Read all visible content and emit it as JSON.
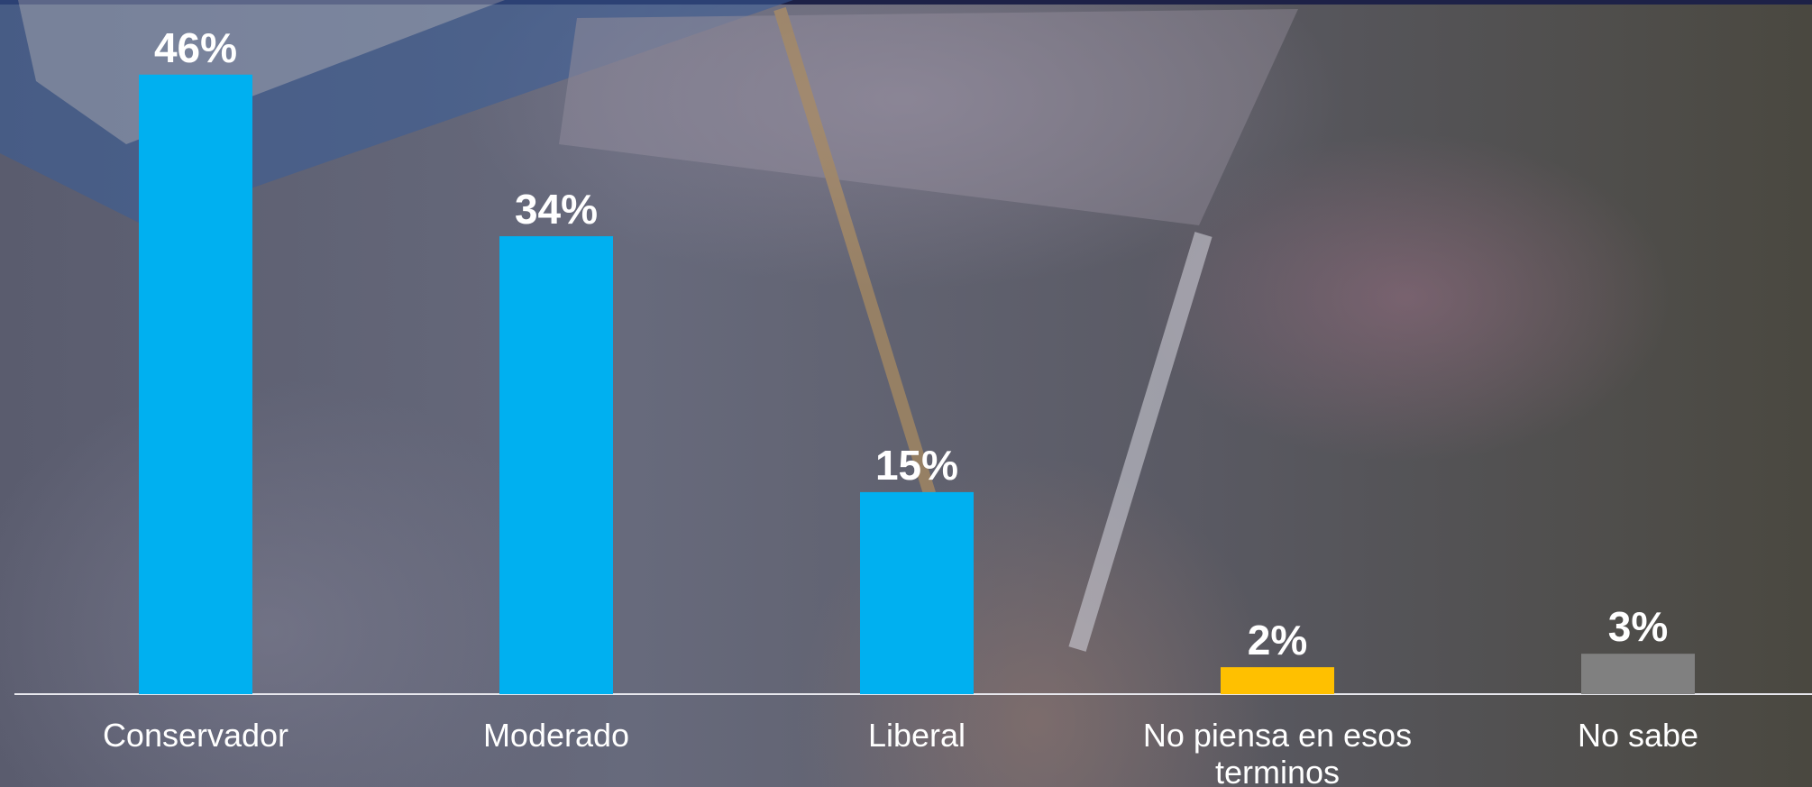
{
  "chart_data": {
    "type": "bar",
    "categories": [
      "Conservador",
      "Moderado",
      "Liberal",
      "No piensa en esos terminos",
      "No sabe"
    ],
    "values": [
      46,
      34,
      15,
      2,
      3
    ],
    "value_labels": [
      "46%",
      "34%",
      "15%",
      "2%",
      "3%"
    ],
    "colors": [
      "#00b0f0",
      "#00b0f0",
      "#00b0f0",
      "#ffc000",
      "#808080"
    ]
  }
}
